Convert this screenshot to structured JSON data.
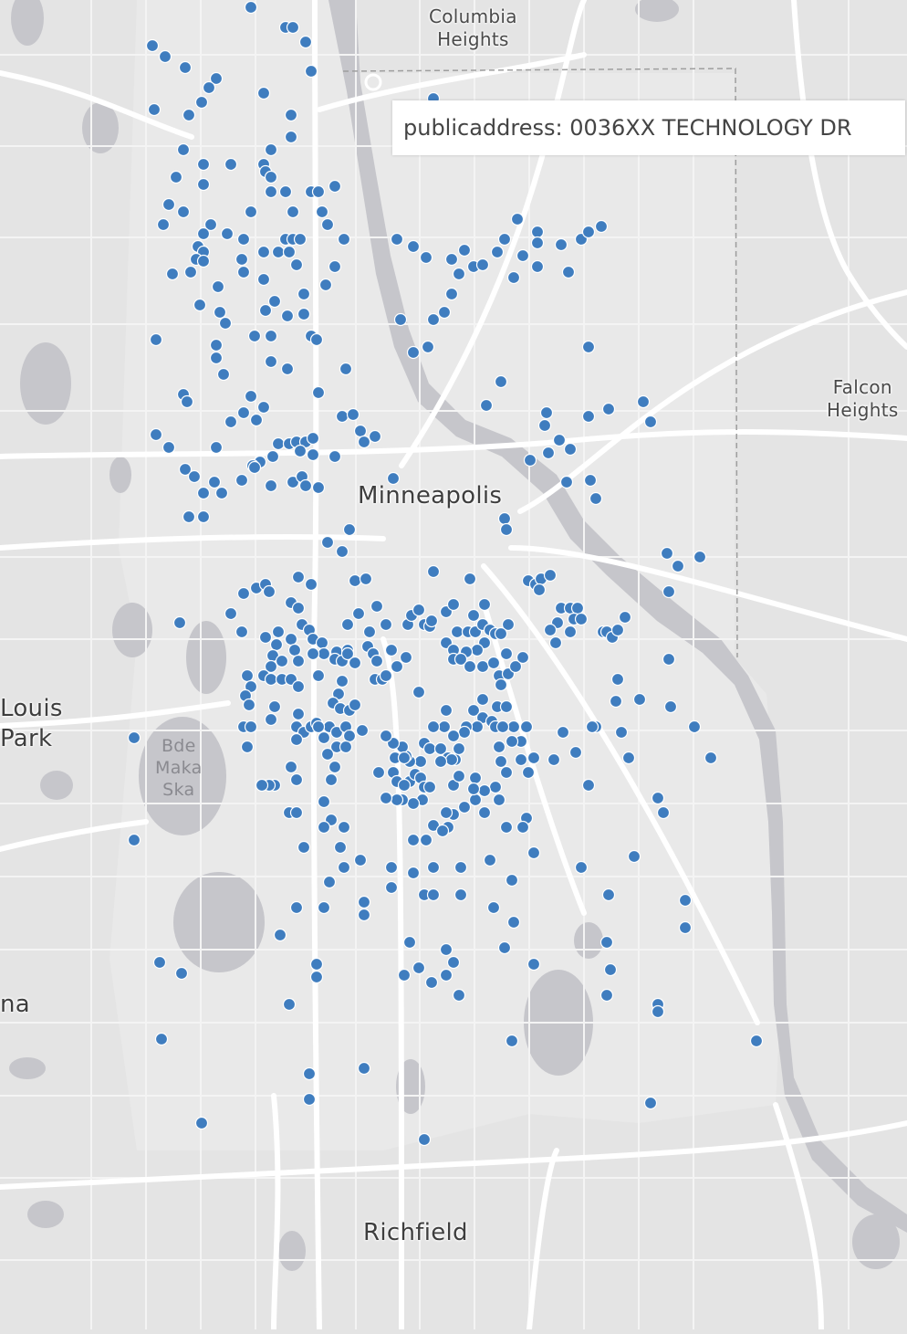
{
  "map": {
    "labels": {
      "columbia_heights": "Columbia\nHeights",
      "falcon_heights": "Falcon\nHeights",
      "minneapolis": "Minneapolis",
      "st_louis_park": "Louis\nPark",
      "edina": "na",
      "richfield": "Richfield",
      "bde_maka_ska": "Bde\nMaka\nSka"
    },
    "tooltip": {
      "text": "publicaddress: 0036XX TECHNOLOGY DR"
    },
    "colors": {
      "point": "#3f7dbf",
      "point_outline": "#ffffff",
      "water": "#c6c6cb",
      "road": "#ffffff",
      "land": "#e4e4e4"
    }
  }
}
